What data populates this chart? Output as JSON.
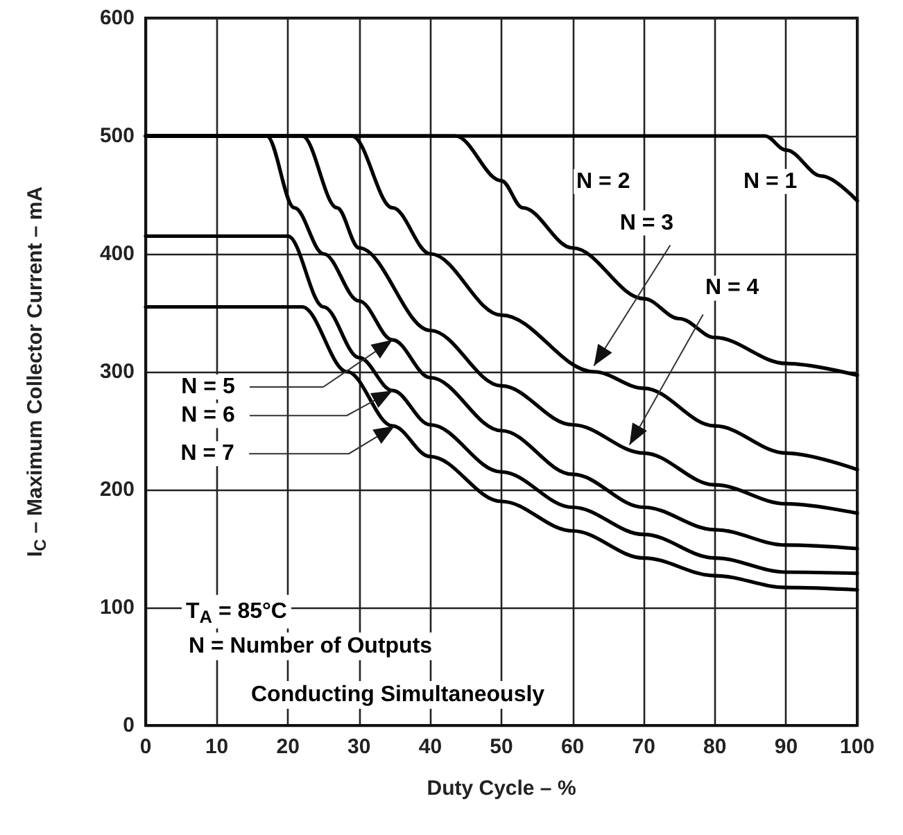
{
  "chart_data": {
    "type": "line",
    "xlabel": "Duty Cycle – %",
    "ylabel": "I$_{C}$ – Maximum Collector Current – mA",
    "xlim": [
      0,
      100
    ],
    "xticks": [
      0,
      10,
      20,
      30,
      40,
      50,
      60,
      70,
      80,
      90,
      100
    ],
    "ylim": [
      0,
      600
    ],
    "yticks": [
      0,
      100,
      200,
      300,
      400,
      500,
      600
    ],
    "grid": true,
    "marker": "none",
    "line_style": "solid",
    "series": [
      {
        "color": "#000000",
        "x": [
          0,
          87,
          90,
          95,
          100
        ],
        "values": [
          500,
          500,
          488,
          466,
          445
        ]
      },
      {
        "color": "#000000",
        "x": [
          0,
          43.5,
          50,
          53,
          60,
          70,
          75,
          80,
          90,
          100
        ],
        "values": [
          500,
          500,
          462,
          439,
          405,
          362,
          345,
          329,
          307,
          297
        ]
      },
      {
        "color": "#000000",
        "x": [
          0,
          29,
          34.7,
          40,
          50,
          63,
          70,
          80,
          90,
          100
        ],
        "values": [
          500,
          500,
          439,
          400,
          348,
          300,
          286,
          254,
          231,
          217
        ]
      },
      {
        "color": "#000000",
        "x": [
          0,
          22,
          26.9,
          30,
          40,
          50,
          60,
          70,
          80,
          90,
          100
        ],
        "values": [
          500,
          500,
          439,
          405,
          335,
          288,
          255,
          231,
          204,
          188,
          180
        ]
      },
      {
        "color": "#000000",
        "x": [
          0,
          17,
          20.9,
          25,
          30,
          34.7,
          40,
          50,
          60,
          70,
          80,
          90,
          100
        ],
        "values": [
          500,
          500,
          439,
          400,
          360,
          327,
          295,
          250,
          213,
          185,
          166,
          153,
          150
        ]
      },
      {
        "color": "#000000",
        "x": [
          0,
          20,
          25,
          30,
          34.7,
          40,
          50,
          60,
          70,
          80,
          90,
          100
        ],
        "values": [
          415,
          415,
          355,
          312,
          284,
          255,
          215,
          185,
          162,
          142,
          130,
          129
        ]
      },
      {
        "color": "#000000",
        "x": [
          0,
          22,
          28.3,
          34.7,
          40,
          50,
          60,
          70,
          80,
          90,
          100
        ],
        "values": [
          355,
          355,
          300,
          254,
          228,
          190,
          165,
          142,
          127,
          117,
          115
        ]
      }
    ],
    "annotations": [
      {
        "text": "N = 1",
        "x": 95,
        "y": 466
      },
      {
        "text": "N = 2",
        "x": 53,
        "y": 439
      },
      {
        "text": "N = 3",
        "x": 63,
        "y": 305
      },
      {
        "text": "N = 4",
        "x": 68,
        "y": 238
      },
      {
        "text": "N = 5",
        "x": 34.7,
        "y": 327
      },
      {
        "text": "N = 6",
        "x": 34.7,
        "y": 284
      },
      {
        "text": "N = 7",
        "x": 35,
        "y": 254
      },
      "T$_{A}$ = 85°C",
      "N = Number of Outputs",
      "Conducting Simultaneously"
    ]
  }
}
